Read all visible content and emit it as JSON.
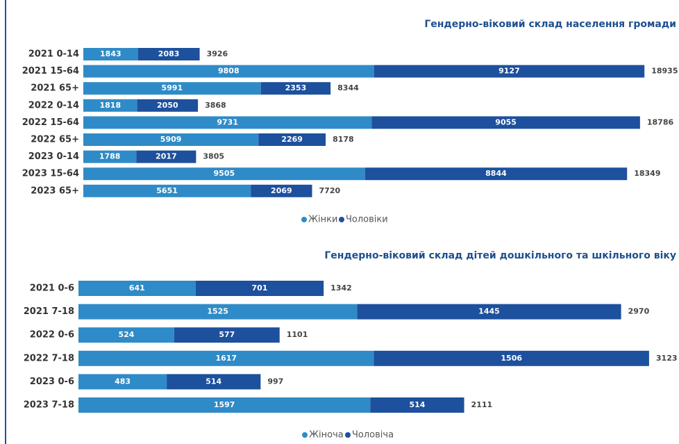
{
  "chart_data": [
    {
      "type": "stacked_barh",
      "title": "Гендерно-віковий склад населення громади",
      "categories": [
        "2021 0-14",
        "2021 15-64",
        "2021 65+",
        "2022 0-14",
        "2022 15-64",
        "2022 65+",
        "2023 0-14",
        "2023 15-64",
        "2023 65+"
      ],
      "series": [
        {
          "name": "Жінки",
          "color": "#2f8bc7",
          "values": [
            1843,
            9808,
            5991,
            1818,
            9731,
            5909,
            1788,
            9505,
            5651
          ]
        },
        {
          "name": "Чоловіки",
          "color": "#1d509d",
          "values": [
            2083,
            9127,
            2353,
            2050,
            9055,
            2269,
            2017,
            8844,
            2069
          ]
        }
      ],
      "totals": [
        3926,
        18935,
        8344,
        3868,
        18786,
        8178,
        3805,
        18349,
        7720
      ],
      "xlim": [
        0,
        19000
      ],
      "legend": "bottom"
    },
    {
      "type": "stacked_barh",
      "title": "Гендерно-віковий склад дітей дошкільного та шкільного віку",
      "categories": [
        "2021 0-6",
        "2021 7-18",
        "2022 0-6",
        "2022 7-18",
        "2023 0-6",
        "2023 7-18"
      ],
      "series": [
        {
          "name": "Жіноча",
          "color": "#2f8bc7",
          "values": [
            641,
            1525,
            524,
            1617,
            483,
            1597
          ]
        },
        {
          "name": "Чоловіча",
          "color": "#1d509d",
          "values": [
            701,
            1445,
            577,
            1506,
            514,
            514
          ]
        }
      ],
      "totals": [
        1342,
        2970,
        1101,
        3123,
        997,
        2111
      ],
      "xlim": [
        0,
        3150
      ],
      "legend": "bottom"
    }
  ]
}
